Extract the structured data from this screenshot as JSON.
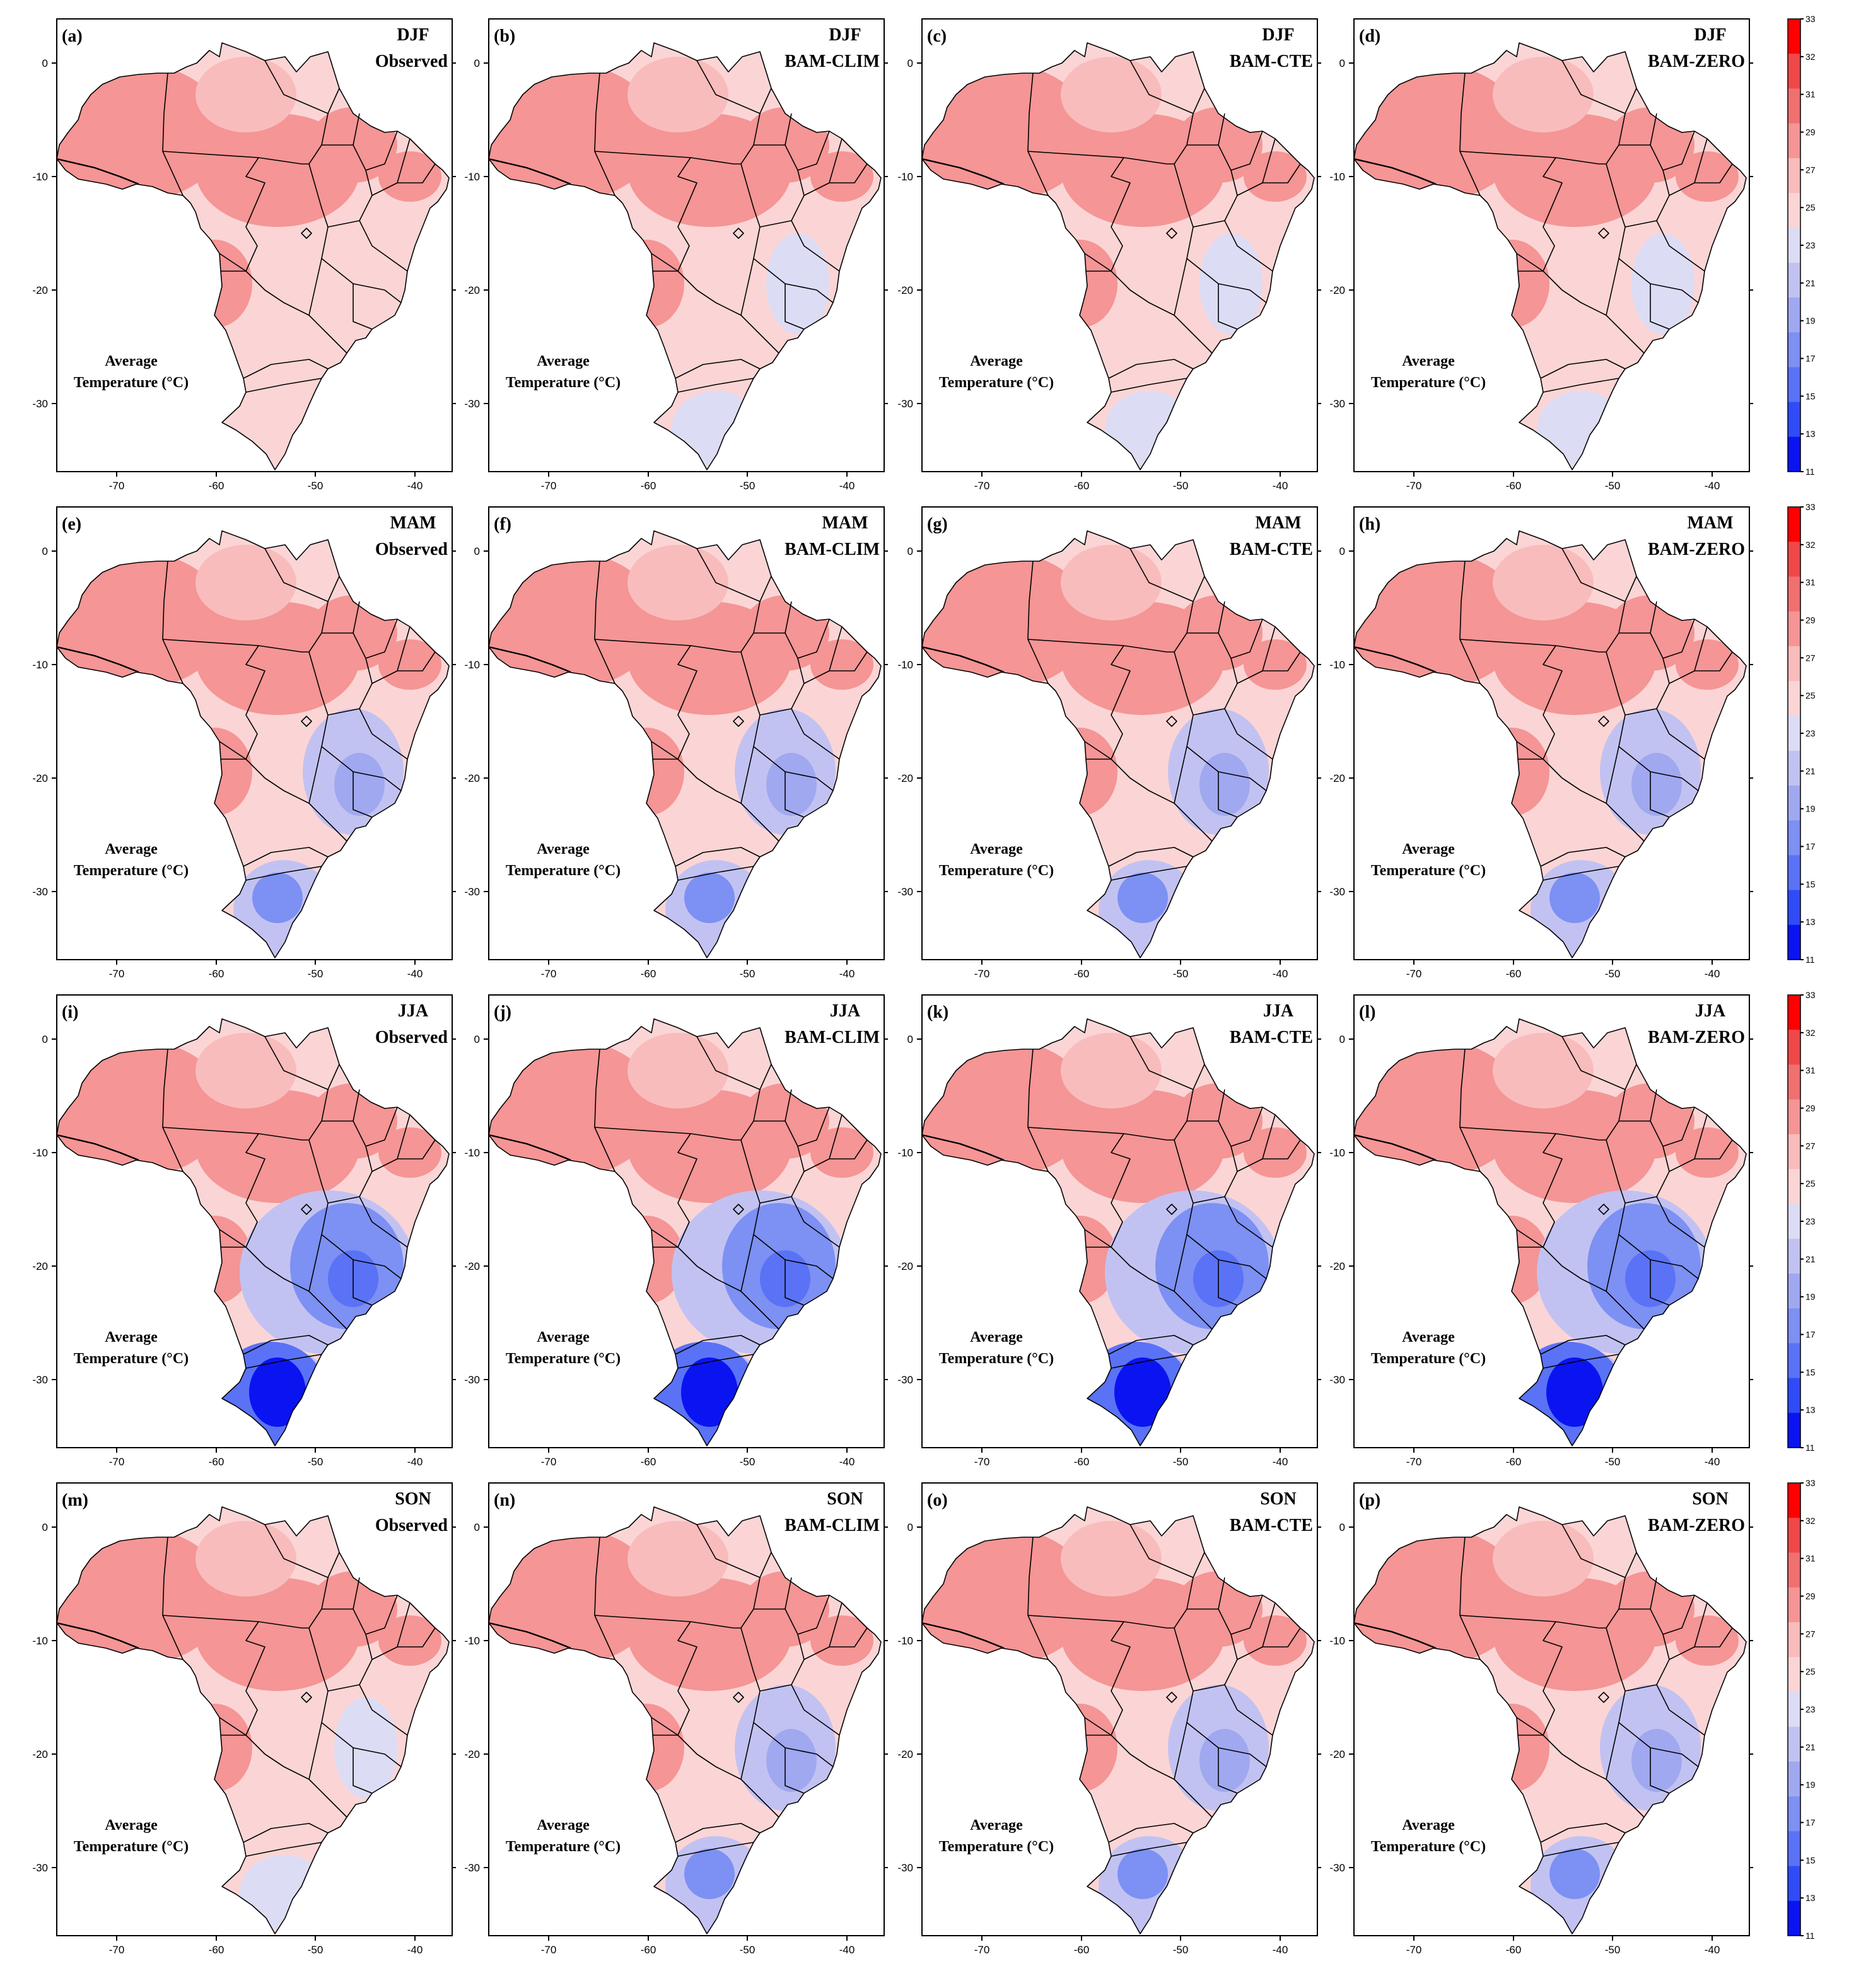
{
  "figure": {
    "note_line1": "Average",
    "note_line2": "Temperature (°C)",
    "colorbar_ticks": [
      33,
      32,
      31,
      29,
      27,
      25,
      23,
      21,
      19,
      17,
      15,
      13,
      11
    ],
    "colorbar_colors": [
      "#ff0000",
      "#f04848",
      "#f07070",
      "#f59595",
      "#f9bcbc",
      "#fbd5d5",
      "#dcdcf5",
      "#c2c2f2",
      "#a0a8f0",
      "#7d90f3",
      "#5a72f6",
      "#2f4cf7",
      "#0a14f0"
    ],
    "x_ticks": [
      "-70",
      "-60",
      "-50",
      "-40"
    ],
    "y_ticks": [
      "0",
      "-10",
      "-20",
      "-30"
    ],
    "rows": [
      {
        "season": "DJF",
        "panels": [
          {
            "letter": "(a)",
            "source": "Observed",
            "cold_level": 0
          },
          {
            "letter": "(b)",
            "source": "BAM-CLIM",
            "cold_level": 1
          },
          {
            "letter": "(c)",
            "source": "BAM-CTE",
            "cold_level": 1
          },
          {
            "letter": "(d)",
            "source": "BAM-ZERO",
            "cold_level": 1
          }
        ]
      },
      {
        "season": "MAM",
        "panels": [
          {
            "letter": "(e)",
            "source": "Observed",
            "cold_level": 2
          },
          {
            "letter": "(f)",
            "source": "BAM-CLIM",
            "cold_level": 2
          },
          {
            "letter": "(g)",
            "source": "BAM-CTE",
            "cold_level": 2
          },
          {
            "letter": "(h)",
            "source": "BAM-ZERO",
            "cold_level": 2
          }
        ]
      },
      {
        "season": "JJA",
        "panels": [
          {
            "letter": "(i)",
            "source": "Observed",
            "cold_level": 3
          },
          {
            "letter": "(j)",
            "source": "BAM-CLIM",
            "cold_level": 3
          },
          {
            "letter": "(k)",
            "source": "BAM-CTE",
            "cold_level": 3
          },
          {
            "letter": "(l)",
            "source": "BAM-ZERO",
            "cold_level": 3
          }
        ]
      },
      {
        "season": "SON",
        "panels": [
          {
            "letter": "(m)",
            "source": "Observed",
            "cold_level": 1
          },
          {
            "letter": "(n)",
            "source": "BAM-CLIM",
            "cold_level": 2
          },
          {
            "letter": "(o)",
            "source": "BAM-CTE",
            "cold_level": 2
          },
          {
            "letter": "(p)",
            "source": "BAM-ZERO",
            "cold_level": 2
          }
        ]
      }
    ]
  }
}
